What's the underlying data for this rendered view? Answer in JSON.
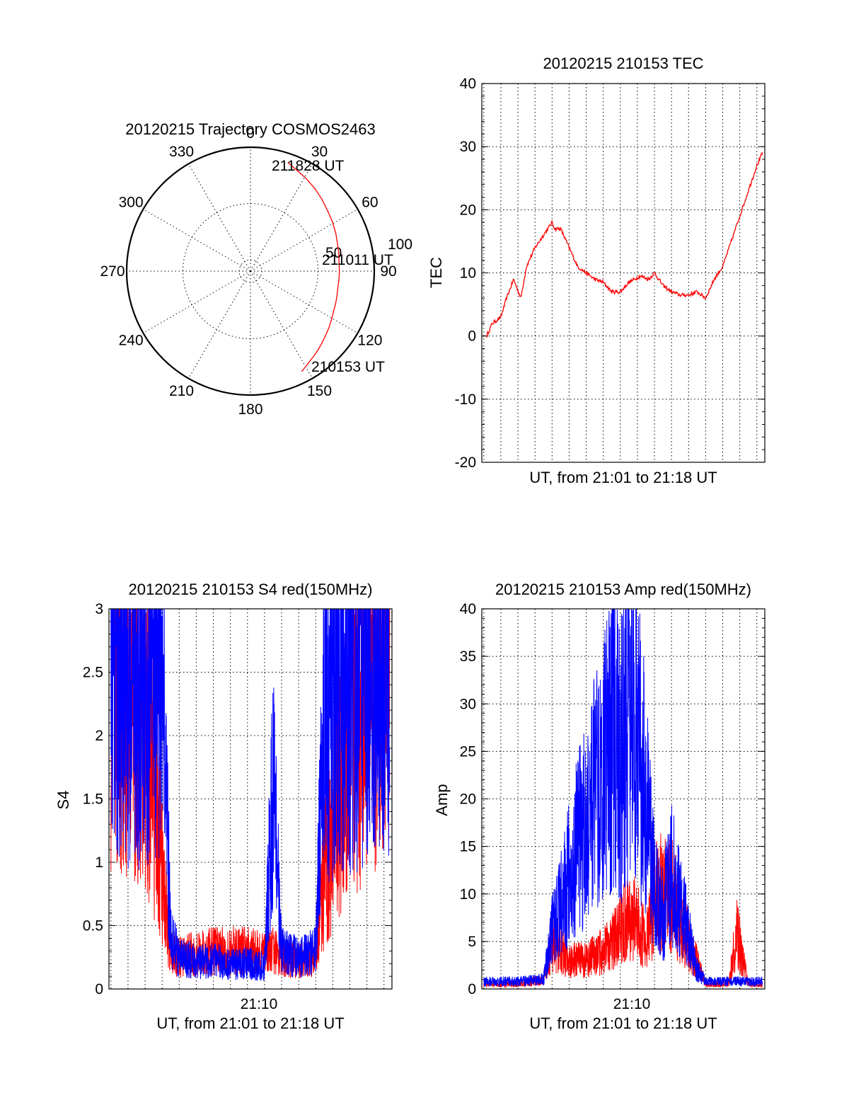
{
  "colors": {
    "red": "#ff0000",
    "blue": "#0000ff",
    "axis": "#000000",
    "background": "#ffffff"
  },
  "chart_data": [
    {
      "type": "polar",
      "title": "20120215 Trajectory COSMOS2463",
      "angle_ticks": [
        "0",
        "30",
        "60",
        "90",
        "120",
        "150",
        "180",
        "210",
        "240",
        "270",
        "300",
        "330"
      ],
      "radial_ticks": [
        "50",
        "100"
      ],
      "series": [
        {
          "color": "#ff0000",
          "azimuth_deg": [
            153,
            150,
            147,
            143,
            139,
            135,
            131,
            126,
            121,
            116,
            111,
            106,
            101,
            95,
            90,
            85,
            79,
            73,
            66,
            59,
            52,
            45,
            38,
            31,
            24,
            19
          ],
          "radius": [
            100,
            98,
            96,
            94,
            92,
            90,
            88,
            86,
            84,
            82,
            81,
            80,
            79,
            79,
            79,
            79,
            80,
            81,
            83,
            85,
            87,
            90,
            93,
            96,
            99,
            102
          ]
        }
      ],
      "annotations": [
        "210153 UT",
        "211011 UT",
        "211828 UT"
      ]
    },
    {
      "type": "line",
      "title": "20120215 210153 TEC",
      "xlabel": "UT, from 21:01 to 21:18 UT",
      "ylabel": "TEC",
      "ylim": [
        -20,
        40
      ],
      "yticks": [
        "-20",
        "-10",
        "0",
        "10",
        "20",
        "30",
        "40"
      ],
      "xlim": [
        "21:01:53",
        "21:18:28"
      ],
      "grid": true,
      "series": [
        {
          "color": "#ff0000",
          "x": [
            "21:02:10",
            "21:02:30",
            "21:03:00",
            "21:03:20",
            "21:03:45",
            "21:04:10",
            "21:04:30",
            "21:05:00",
            "21:05:30",
            "21:06:00",
            "21:06:10",
            "21:06:30",
            "21:07:00",
            "21:07:30",
            "21:08:00",
            "21:08:30",
            "21:09:00",
            "21:09:30",
            "21:10:00",
            "21:10:30",
            "21:10:50",
            "21:11:10",
            "21:11:40",
            "21:12:00",
            "21:12:30",
            "21:13:00",
            "21:13:30",
            "21:14:00",
            "21:14:30",
            "21:15:00",
            "21:15:30",
            "21:16:00",
            "21:16:30",
            "21:17:00",
            "21:17:30",
            "21:18:00",
            "21:18:20"
          ],
          "y": [
            0,
            2,
            3,
            6,
            9,
            6,
            11,
            14,
            16,
            18,
            17,
            17,
            14,
            11,
            10,
            9,
            8.5,
            7,
            7,
            8.5,
            9,
            9.5,
            9,
            10,
            8,
            7,
            6.5,
            6.5,
            7,
            6,
            9,
            11,
            15,
            19,
            23,
            27,
            29
          ]
        }
      ]
    },
    {
      "type": "line",
      "title": "20120215 210153 S4 red(150MHz)",
      "xlabel": "UT, from 21:01 to 21:18 UT",
      "ylabel": "S4",
      "ylim": [
        0,
        3
      ],
      "yticks": [
        "0",
        "0.5",
        "1",
        "1.5",
        "2",
        "2.5",
        "3"
      ],
      "xticks": [
        "21:10"
      ],
      "xlim": [
        "21:01:53",
        "21:18:28"
      ],
      "grid": true,
      "series": [
        {
          "color": "#ff0000",
          "x": [
            "21:02:00",
            "21:03:00",
            "21:04:00",
            "21:04:30",
            "21:05:00",
            "21:05:30",
            "21:06:00",
            "21:07:00",
            "21:08:00",
            "21:09:00",
            "21:10:00",
            "21:11:00",
            "21:11:30",
            "21:12:00",
            "21:13:00",
            "21:14:00",
            "21:14:30",
            "21:15:30",
            "21:16:30",
            "21:17:30",
            "21:18:20"
          ],
          "y": [
            2.6,
            2.4,
            2.2,
            1.6,
            0.9,
            0.3,
            0.25,
            0.28,
            0.3,
            0.3,
            0.3,
            0.28,
            0.3,
            0.25,
            0.22,
            0.25,
            0.9,
            1.6,
            2.2,
            2.5,
            2.9
          ]
        },
        {
          "color": "#0000ff",
          "x": [
            "21:02:00",
            "21:03:00",
            "21:04:00",
            "21:04:30",
            "21:05:00",
            "21:05:30",
            "21:06:00",
            "21:07:00",
            "21:08:00",
            "21:09:00",
            "21:10:00",
            "21:11:00",
            "21:11:30",
            "21:12:00",
            "21:13:00",
            "21:14:00",
            "21:14:30",
            "21:15:30",
            "21:16:30",
            "21:17:30",
            "21:18:20"
          ],
          "y": [
            2.8,
            2.7,
            2.6,
            2.8,
            2.6,
            0.4,
            0.25,
            0.22,
            0.22,
            0.2,
            0.2,
            0.18,
            1.6,
            0.3,
            0.25,
            0.3,
            2.2,
            2.5,
            2.6,
            2.7,
            2.8
          ]
        }
      ]
    },
    {
      "type": "line",
      "title": "20120215 210153 Amp red(150MHz)",
      "xlabel": "UT, from 21:01 to 21:18 UT",
      "ylabel": "Amp",
      "ylim": [
        0,
        40
      ],
      "yticks": [
        "0",
        "5",
        "10",
        "15",
        "20",
        "25",
        "30",
        "35",
        "40"
      ],
      "xticks": [
        "21:10"
      ],
      "xlim": [
        "21:01:53",
        "21:18:28"
      ],
      "grid": true,
      "series": [
        {
          "color": "#ff0000",
          "x": [
            "21:02:00",
            "21:04:00",
            "21:05:30",
            "21:06:00",
            "21:07:00",
            "21:08:00",
            "21:09:00",
            "21:10:00",
            "21:10:30",
            "21:11:00",
            "21:11:30",
            "21:12:00",
            "21:12:30",
            "21:13:00",
            "21:13:30",
            "21:14:00",
            "21:15:00",
            "21:16:00",
            "21:16:20",
            "21:16:50",
            "21:17:30",
            "21:18:20"
          ],
          "y": [
            0.5,
            0.5,
            1,
            5,
            3,
            3,
            4,
            6,
            8,
            7,
            5,
            9,
            11,
            10,
            7,
            5,
            0.5,
            0.5,
            0.5,
            6,
            0.5,
            0.5
          ]
        },
        {
          "color": "#0000ff",
          "x": [
            "21:02:00",
            "21:04:00",
            "21:05:30",
            "21:06:00",
            "21:07:00",
            "21:08:00",
            "21:09:00",
            "21:09:30",
            "21:10:00",
            "21:10:30",
            "21:11:00",
            "21:11:30",
            "21:12:00",
            "21:12:30",
            "21:13:00",
            "21:13:30",
            "21:14:00",
            "21:14:30",
            "21:15:00",
            "21:16:00",
            "21:17:00",
            "21:18:20"
          ],
          "y": [
            0.8,
            0.8,
            1,
            6,
            12,
            18,
            22,
            28,
            24,
            30,
            26,
            20,
            10,
            8,
            12,
            9,
            6,
            2,
            0.8,
            0.8,
            0.8,
            0.8
          ]
        }
      ]
    }
  ]
}
